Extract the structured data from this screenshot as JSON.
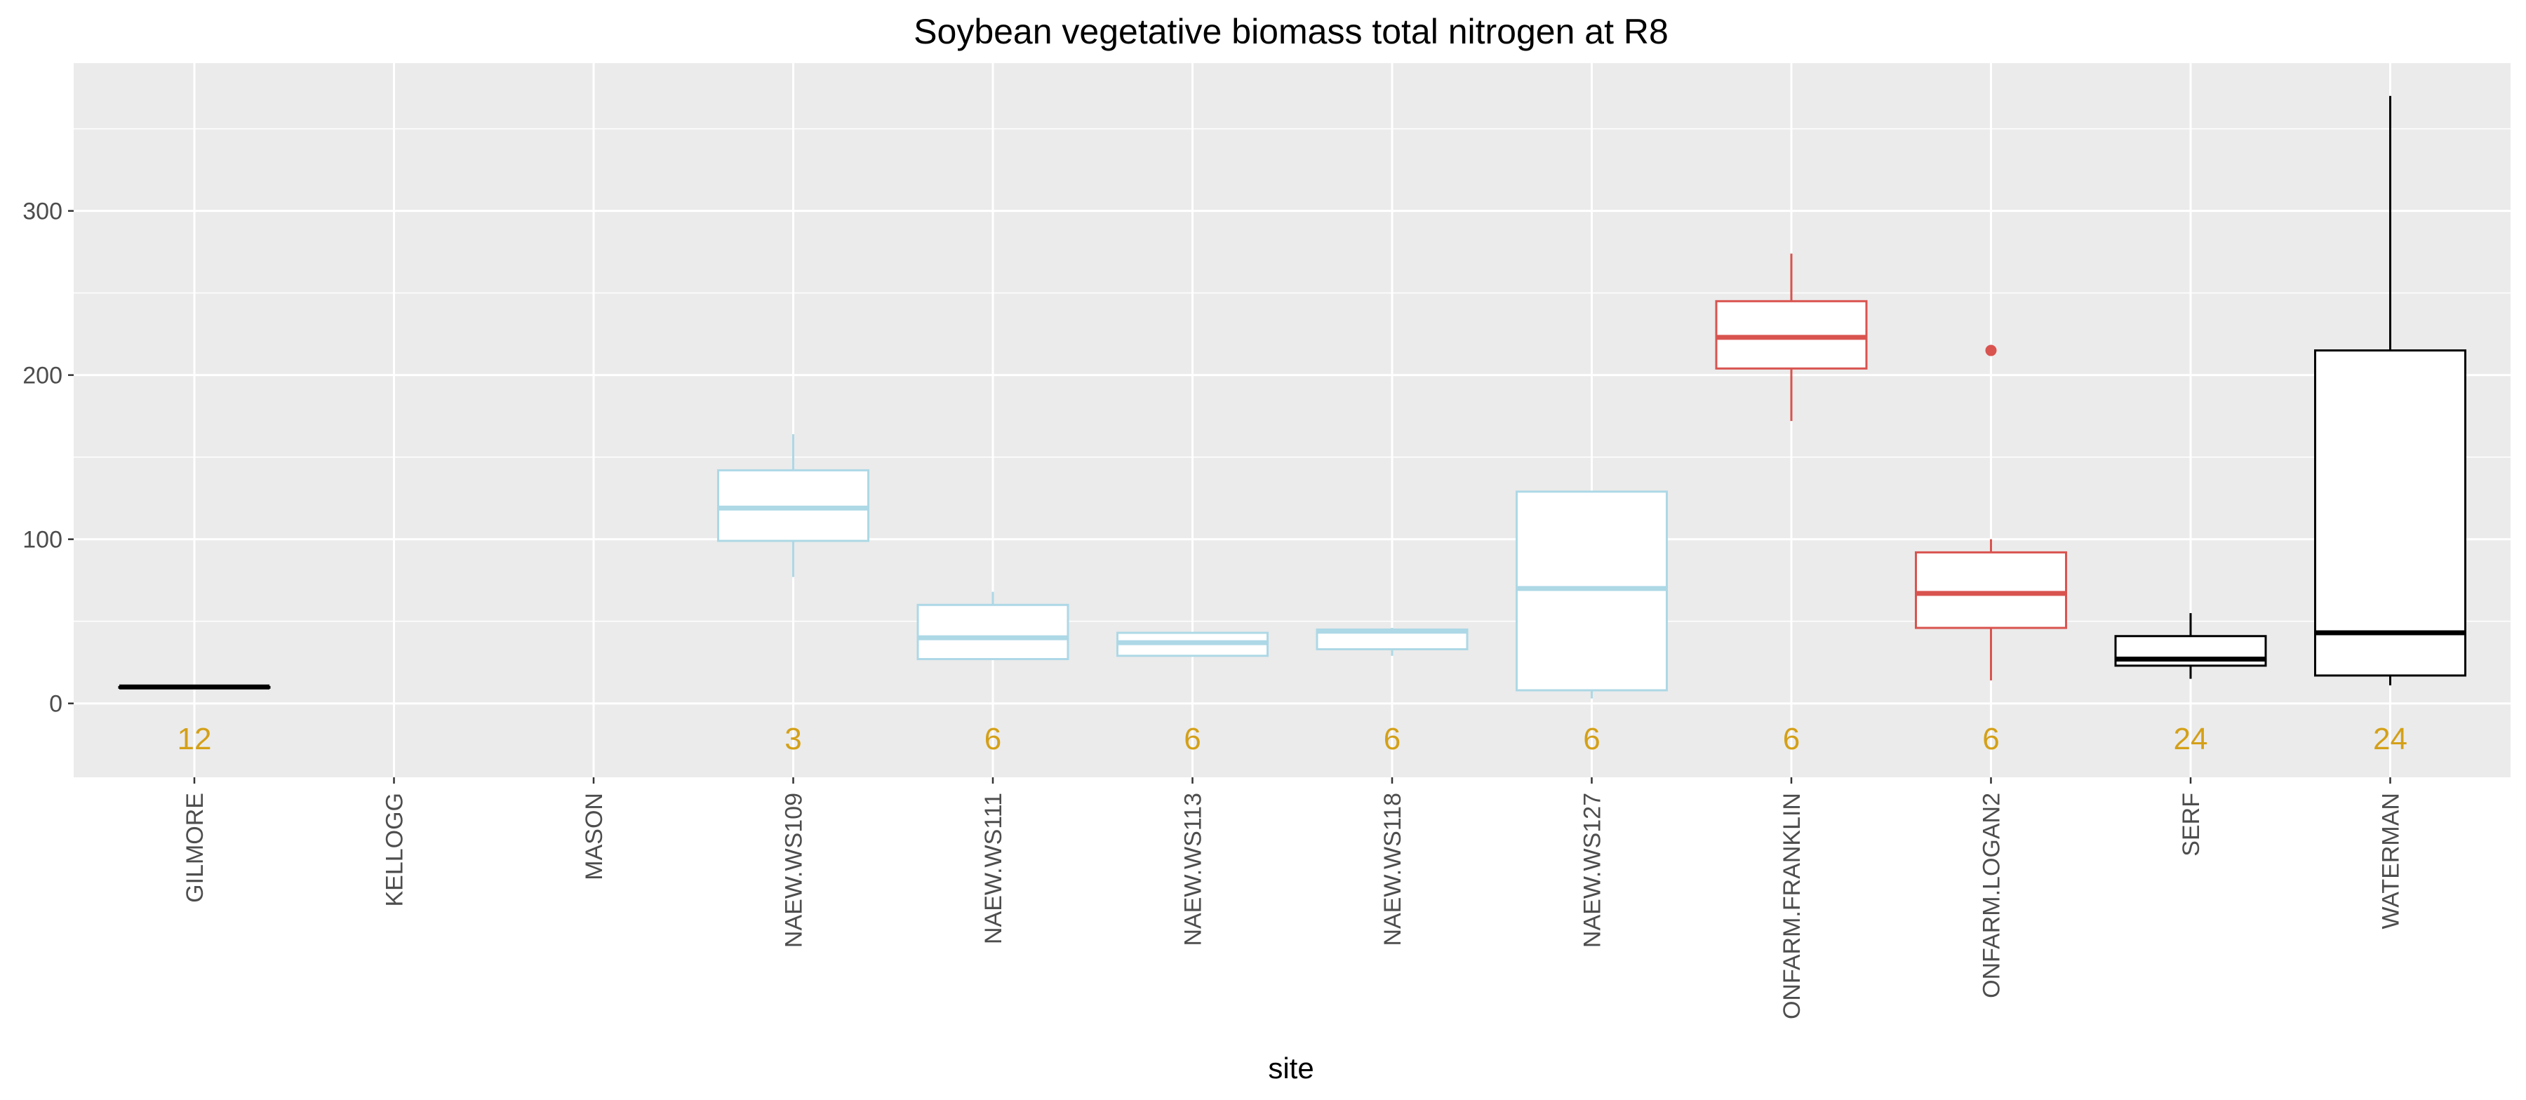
{
  "chart_data": {
    "type": "boxplot",
    "title": "Soybean vegetative biomass total nitrogen at R8",
    "xlabel": "site",
    "ylabel": "",
    "ylim": [
      -45,
      390
    ],
    "yticks": [
      0,
      100,
      200,
      300
    ],
    "grid": true,
    "colors": {
      "background": "#EBEBEB",
      "grid": "#FFFFFF",
      "count_label": "#D4A017",
      "light_blue": "#ADD8E6",
      "red": "#D9534F",
      "black": "#000000"
    },
    "categories": [
      "GILMORE",
      "KELLOGG",
      "MASON",
      "NAEW.WS109",
      "NAEW.WS111",
      "NAEW.WS113",
      "NAEW.WS118",
      "NAEW.WS127",
      "ONFARM.FRANKLIN",
      "ONFARM.LOGAN2",
      "SERF",
      "WATERMAN"
    ],
    "boxes": [
      {
        "site": "GILMORE",
        "color": "#000000",
        "min": 10,
        "q1": 10,
        "median": 10,
        "q3": 10,
        "max": 11,
        "outliers": [],
        "n": "12"
      },
      {
        "site": "KELLOGG",
        "color": "",
        "n": ""
      },
      {
        "site": "MASON",
        "color": "",
        "n": ""
      },
      {
        "site": "NAEW.WS109",
        "color": "#ADD8E6",
        "min": 77,
        "q1": 99,
        "median": 119,
        "q3": 142,
        "max": 164,
        "outliers": [],
        "n": "3"
      },
      {
        "site": "NAEW.WS111",
        "color": "#ADD8E6",
        "min": 27,
        "q1": 27,
        "median": 40,
        "q3": 60,
        "max": 68,
        "outliers": [],
        "n": "6"
      },
      {
        "site": "NAEW.WS113",
        "color": "#ADD8E6",
        "min": 29,
        "q1": 29,
        "median": 37,
        "q3": 43,
        "max": 43,
        "outliers": [],
        "n": "6"
      },
      {
        "site": "NAEW.WS118",
        "color": "#ADD8E6",
        "min": 29,
        "q1": 33,
        "median": 44,
        "q3": 45,
        "max": 46,
        "outliers": [],
        "n": "6"
      },
      {
        "site": "NAEW.WS127",
        "color": "#ADD8E6",
        "min": 3,
        "q1": 8,
        "median": 70,
        "q3": 129,
        "max": 129,
        "outliers": [],
        "n": "6"
      },
      {
        "site": "ONFARM.FRANKLIN",
        "color": "#D9534F",
        "min": 172,
        "q1": 204,
        "median": 223,
        "q3": 245,
        "max": 274,
        "outliers": [],
        "n": "6"
      },
      {
        "site": "ONFARM.LOGAN2",
        "color": "#D9534F",
        "min": 14,
        "q1": 46,
        "median": 67,
        "q3": 92,
        "max": 100,
        "outliers": [
          215
        ],
        "n": "6"
      },
      {
        "site": "SERF",
        "color": "#000000",
        "min": 15,
        "q1": 23,
        "median": 27,
        "q3": 41,
        "max": 55,
        "outliers": [],
        "n": "24"
      },
      {
        "site": "WATERMAN",
        "color": "#000000",
        "min": 11,
        "q1": 17,
        "median": 43,
        "q3": 215,
        "max": 370,
        "outliers": [],
        "n": "24"
      }
    ]
  }
}
